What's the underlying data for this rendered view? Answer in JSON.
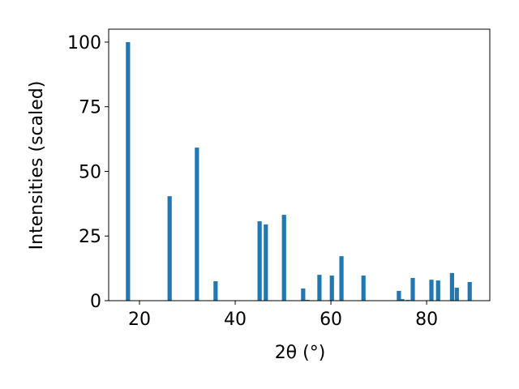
{
  "chart_data": {
    "type": "bar",
    "xlabel": "2θ (°)",
    "ylabel": "Intensities (scaled)",
    "x": [
      17.6,
      26.3,
      32.0,
      35.9,
      45.1,
      46.4,
      50.2,
      54.2,
      55.1,
      57.6,
      60.2,
      62.2,
      66.8,
      74.2,
      74.9,
      76.1,
      77.1,
      81.0,
      82.4,
      85.3,
      86.3,
      89.0
    ],
    "values": [
      100,
      40.4,
      59.2,
      7.5,
      30.7,
      29.5,
      33.2,
      4.7,
      0.3,
      10,
      9.7,
      17.2,
      9.7,
      3.8,
      0.6,
      0.3,
      8.8,
      8.1,
      7.8,
      10.7,
      5,
      7.2
    ],
    "color": "#1f77b4",
    "xlim": [
      13.56,
      93.2
    ],
    "xticks": [
      20,
      40,
      60,
      80
    ],
    "ylim": [
      0,
      105
    ],
    "yticks": [
      0,
      25,
      50,
      75,
      100
    ]
  }
}
